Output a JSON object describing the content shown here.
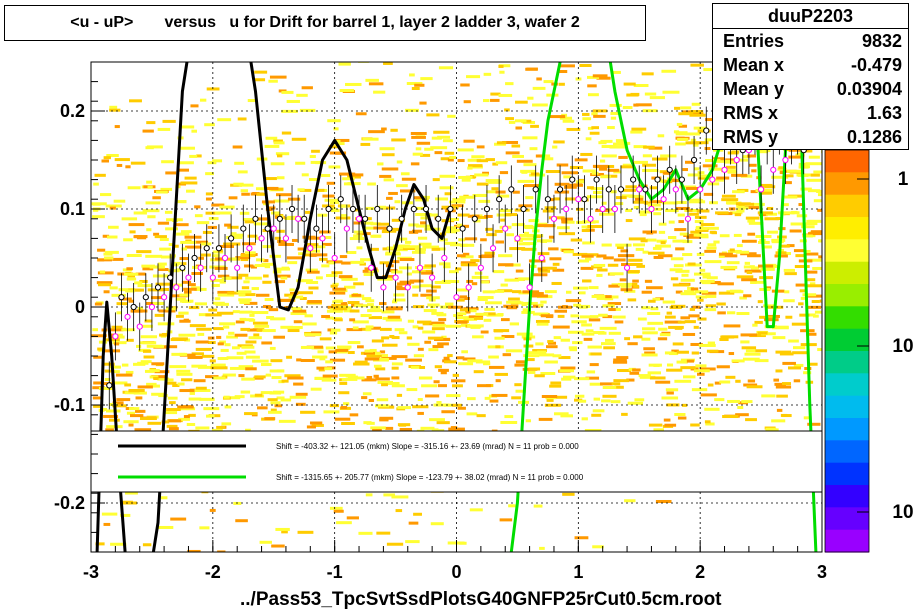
{
  "title": "<u - uP>       versus   u for Drift for barrel 1, layer 2 ladder 3, wafer 2",
  "stats": {
    "name": "duuP2203",
    "rows": [
      {
        "label": "Entries",
        "value": "9832"
      },
      {
        "label": "Mean x",
        "value": "-0.479"
      },
      {
        "label": "Mean y",
        "value": "0.03904"
      },
      {
        "label": "RMS x",
        "value": "1.63"
      },
      {
        "label": "RMS y",
        "value": "0.1286"
      }
    ]
  },
  "xlabel": "../Pass53_TpcSvtSsdPlotsG40GNFP25rCut0.5cm.root",
  "legend": {
    "entries": [
      {
        "color": "#000000",
        "text": "Shift =  -403.32 +- 121.05 (mkm) Slope =  -315.16 +- 23.69 (mrad)  N = 11 prob = 0.000"
      },
      {
        "color": "#00dd00",
        "text": "Shift = -1315.65 +- 205.77 (mkm) Slope =  -123.79 +- 38.02 (mrad)  N = 11 prob = 0.000"
      }
    ]
  },
  "colors": {
    "heat_low": "#ffff33",
    "heat_mid": "#ffcc00",
    "heat_high": "#ff9900",
    "profile_black": "#000000",
    "profile_magenta": "#ff00ff",
    "fit_black": "#000000",
    "fit_green": "#00dd00"
  },
  "chart_data": {
    "type": "heatmap",
    "xlim": [
      -3,
      3
    ],
    "ylim": [
      -0.25,
      0.25
    ],
    "x_ticks": [
      "-3",
      "-2",
      "-1",
      "0",
      "1",
      "2",
      "3"
    ],
    "y_ticks": [
      "-0.2",
      "-0.1",
      "0",
      "0.1",
      "0.2"
    ],
    "grid": true,
    "palette_labels": [
      "1",
      "10",
      "10"
    ],
    "profile_black": {
      "x": [
        -2.85,
        -2.75,
        -2.65,
        -2.55,
        -2.45,
        -2.35,
        -2.25,
        -2.15,
        -2.05,
        -1.95,
        -1.85,
        -1.75,
        -1.65,
        -1.55,
        -1.45,
        -1.35,
        -1.25,
        -1.15,
        -1.05,
        -0.95,
        -0.85,
        -0.75,
        -0.65,
        -0.55,
        -0.45,
        -0.35,
        -0.25,
        -0.15,
        -0.05,
        0.05,
        0.15,
        0.25,
        0.35,
        0.45,
        0.55,
        0.65,
        0.75,
        0.85,
        0.95,
        1.05,
        1.15,
        1.25,
        1.35,
        1.45,
        1.55,
        1.65,
        1.75,
        1.85,
        1.95,
        2.05,
        2.15,
        2.25,
        2.35,
        2.45,
        2.55,
        2.65,
        2.75,
        2.85
      ],
      "y": [
        -0.08,
        0.01,
        0.0,
        0.01,
        0.02,
        0.03,
        0.04,
        0.05,
        0.06,
        0.06,
        0.07,
        0.08,
        0.09,
        0.08,
        0.09,
        0.1,
        0.09,
        0.08,
        0.1,
        0.11,
        0.1,
        0.09,
        0.1,
        0.08,
        0.09,
        0.1,
        0.1,
        0.09,
        0.1,
        0.08,
        0.09,
        0.1,
        0.11,
        0.12,
        0.1,
        0.12,
        0.11,
        0.12,
        0.13,
        0.11,
        0.13,
        0.12,
        0.12,
        0.13,
        0.12,
        0.13,
        0.14,
        0.13,
        0.15,
        0.18,
        0.19,
        0.17,
        0.16,
        0.18,
        0.17,
        0.18,
        0.17,
        0.16
      ]
    },
    "profile_magenta": {
      "x": [
        -2.8,
        -2.7,
        -2.6,
        -2.5,
        -2.4,
        -2.3,
        -2.2,
        -2.1,
        -2.0,
        -1.9,
        -1.8,
        -1.7,
        -1.6,
        -1.5,
        -1.4,
        -1.3,
        -1.2,
        -1.1,
        -1.0,
        -0.9,
        -0.8,
        -0.7,
        -0.6,
        -0.5,
        -0.4,
        -0.3,
        -0.2,
        -0.1,
        0.0,
        0.1,
        0.2,
        0.3,
        0.4,
        0.5,
        0.6,
        0.7,
        0.8,
        0.9,
        1.0,
        1.1,
        1.2,
        1.3,
        1.4,
        1.5,
        1.6,
        1.7,
        1.8,
        1.9,
        2.0,
        2.1,
        2.2,
        2.3,
        2.4,
        2.5,
        2.6,
        2.7,
        2.8,
        2.9
      ],
      "y": [
        -0.03,
        -0.01,
        -0.02,
        0.0,
        0.01,
        0.02,
        0.03,
        0.04,
        0.03,
        0.05,
        0.04,
        0.06,
        0.07,
        0.08,
        0.07,
        0.09,
        0.06,
        0.07,
        0.05,
        0.08,
        0.09,
        0.04,
        0.02,
        0.03,
        0.02,
        0.04,
        0.03,
        0.05,
        0.01,
        0.02,
        0.04,
        0.06,
        0.08,
        0.07,
        0.02,
        0.05,
        0.09,
        0.1,
        0.11,
        0.09,
        0.1,
        0.1,
        0.04,
        0.12,
        0.1,
        0.11,
        0.12,
        0.09,
        0.12,
        0.13,
        0.14,
        0.15,
        0.16,
        0.12,
        0.14,
        0.15,
        0.18,
        0.2
      ]
    },
    "fit_black": {
      "x": [
        -2.95,
        -2.9,
        -2.87,
        -2.83,
        -2.78,
        -2.72,
        -2.65,
        -2.55,
        -2.45,
        -2.35,
        -2.25,
        -2.15,
        -2.05,
        -1.95,
        -1.85,
        -1.75,
        -1.65,
        -1.55,
        -1.45,
        -1.38,
        -1.3,
        -1.2,
        -1.1,
        -1.0,
        -0.9,
        -0.8,
        -0.72,
        -0.65,
        -0.58,
        -0.5,
        -0.42,
        -0.35,
        -0.27,
        -0.2,
        -0.12,
        -0.05
      ],
      "y": [
        -0.25,
        -0.05,
        0.005,
        -0.05,
        -0.15,
        -0.25,
        -0.3,
        -0.3,
        -0.22,
        0.0,
        0.22,
        0.3,
        0.3,
        0.3,
        0.3,
        0.3,
        0.22,
        0.1,
        0.0,
        -0.003,
        0.02,
        0.09,
        0.15,
        0.17,
        0.15,
        0.1,
        0.06,
        0.03,
        0.03,
        0.06,
        0.1,
        0.125,
        0.11,
        0.08,
        0.07,
        0.1
      ]
    },
    "fit_green": {
      "x": [
        0.45,
        0.5,
        0.55,
        0.6,
        0.65,
        0.7,
        0.75,
        0.8,
        0.85,
        0.9,
        0.95,
        1.0,
        1.1,
        1.2,
        1.3,
        1.4,
        1.5,
        1.6,
        1.7,
        1.8,
        1.9,
        2.0,
        2.1,
        2.15,
        2.2,
        2.25,
        2.3,
        2.35,
        2.4,
        2.45,
        2.5,
        2.55,
        2.6,
        2.65,
        2.7,
        2.75,
        2.8,
        2.85,
        2.9,
        2.95
      ],
      "y": [
        -0.25,
        -0.2,
        -0.1,
        0.0,
        0.08,
        0.14,
        0.19,
        0.22,
        0.25,
        0.27,
        0.3,
        0.3,
        0.3,
        0.3,
        0.22,
        0.16,
        0.13,
        0.11,
        0.12,
        0.14,
        0.11,
        0.12,
        0.14,
        0.16,
        0.22,
        0.28,
        0.3,
        0.3,
        0.28,
        0.22,
        0.1,
        -0.02,
        -0.02,
        0.05,
        0.16,
        0.26,
        0.3,
        0.1,
        -0.1,
        -0.25
      ]
    }
  }
}
